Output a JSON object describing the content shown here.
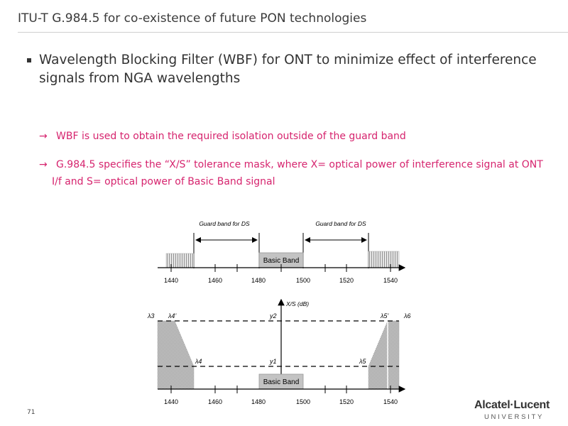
{
  "slide": {
    "title": "ITU-T G.984.5 for co-existence of future PON technologies",
    "bullet": "Wavelength Blocking Filter (WBF) for ONT to minimize effect of interference signals from NGA wavelengths",
    "sub_points": [
      {
        "arrow": "→",
        "text": "WBF is used to obtain the required isolation outside of the guard band"
      },
      {
        "arrow": "→",
        "text": "G.984.5 specifies the “X/S” tolerance mask, where X= optical power of interference signal at ONT",
        "continuation": "I/f and S= optical power of Basic Band signal"
      }
    ],
    "slide_number": "71",
    "logo": {
      "line1": "Alcatel·Lucent",
      "line2": "UNIVERSITY"
    }
  },
  "diagram_top": {
    "guard_band_left": "Guard band for DS",
    "guard_band_right": "Guard band for DS",
    "basic_band": "Basic Band",
    "ticks": [
      "1440",
      "1460",
      "1480",
      "1500",
      "1520",
      "1540"
    ]
  },
  "diagram_bottom": {
    "y_axis_label": "X/S (dB)",
    "labels": {
      "l3": "λ3",
      "l4p": "λ4’",
      "l4": "λ4",
      "y2": "y2",
      "y1": "y1",
      "l5p": "λ5’",
      "l6": "λ6",
      "l5": "λ5"
    },
    "basic_band": "Basic Band",
    "ticks": [
      "1440",
      "1460",
      "1480",
      "1500",
      "1520",
      "1540"
    ]
  },
  "colors": {
    "accent": "#d6246e",
    "band_fill": "#bdbdbd",
    "hatch": "#9a9a9a"
  }
}
